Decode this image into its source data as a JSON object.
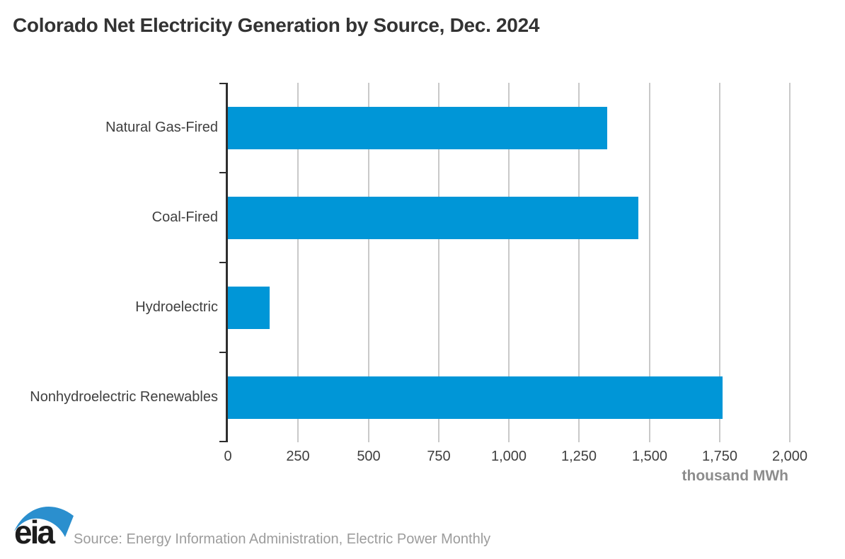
{
  "title": "Colorado Net Electricity Generation by Source, Dec. 2024",
  "chart_data": {
    "type": "bar",
    "orientation": "horizontal",
    "title": "Colorado Net Electricity Generation by Source, Dec. 2024",
    "categories": [
      "Natural Gas-Fired",
      "Coal-Fired",
      "Hydroelectric",
      "Nonhydroelectric Renewables"
    ],
    "values": [
      1350,
      1460,
      148,
      1760
    ],
    "xlabel": "thousand MWh",
    "ylabel": "",
    "xlim": [
      0,
      2000
    ],
    "xticks": [
      0,
      250,
      500,
      750,
      1000,
      1250,
      1500,
      1750,
      2000
    ],
    "xtick_labels": [
      "0",
      "250",
      "500",
      "750",
      "1,000",
      "1,250",
      "1,500",
      "1,750",
      "2,000"
    ],
    "grid": true,
    "legend": false,
    "bar_color": "#0096d7"
  },
  "footer": {
    "logo_text": "eia",
    "source": "Source: Energy Information Administration, Electric Power Monthly"
  },
  "colors": {
    "bar": "#0096d7",
    "grid": "#c9c9c9",
    "axis": "#2e2e2e",
    "title_text": "#333333",
    "label_text": "#3f3f3f",
    "unit_text": "#8c8c8c",
    "source_text": "#9c9c9c",
    "logo_swoosh": "#2b8fce",
    "logo_text": "#1c1c1c"
  }
}
